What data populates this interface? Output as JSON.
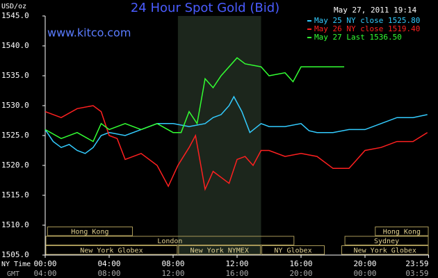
{
  "chart_data": {
    "type": "line",
    "title": "24 Hour Spot Gold (Bid)",
    "subtitle": "www.kitco.com",
    "timestamp": "May 27, 2011 19:14",
    "y_label": "USD/oz",
    "x_label": "NY Time",
    "x2_label": "GMT",
    "ylim": [
      1505,
      1545
    ],
    "yticks": [
      {
        "value": 1505,
        "label": "1505.0"
      },
      {
        "value": 1510,
        "label": "1510.0"
      },
      {
        "value": 1515,
        "label": "1515.0"
      },
      {
        "value": 1520,
        "label": "1520.0"
      },
      {
        "value": 1525,
        "label": "1525.0"
      },
      {
        "value": 1530,
        "label": "1530.0"
      },
      {
        "value": 1535,
        "label": "1535.0"
      },
      {
        "value": 1540,
        "label": "1540.0"
      },
      {
        "value": 1545,
        "label": "1545.0"
      }
    ],
    "xlim": [
      0,
      24
    ],
    "xticks": [
      {
        "value": 0,
        "label": "00:00"
      },
      {
        "value": 4,
        "label": "04:00"
      },
      {
        "value": 8,
        "label": "08:00"
      },
      {
        "value": 12,
        "label": "12:00"
      },
      {
        "value": 16,
        "label": "16:00"
      },
      {
        "value": 20,
        "label": "20:00"
      },
      {
        "value": 23.98,
        "label": "23:59"
      }
    ],
    "x2tick_labels": [
      "04:00",
      "08:00",
      "12:00",
      "16:00",
      "20:00",
      "00:00",
      "03:59"
    ],
    "series": [
      {
        "name": "May 25 NY close 1525.80",
        "color": "#33ccff",
        "x": [
          0,
          0.5,
          1,
          1.5,
          2,
          2.5,
          3,
          3.5,
          4,
          5,
          6,
          7,
          8,
          9,
          10,
          10.5,
          11,
          11.5,
          11.8,
          12.3,
          12.8,
          13.5,
          14,
          15,
          16,
          16.5,
          17,
          18,
          19,
          20,
          21,
          22,
          23,
          23.9
        ],
        "values": [
          1526,
          1524,
          1523,
          1523.5,
          1522.5,
          1522,
          1523,
          1525,
          1525.5,
          1525,
          1526,
          1527,
          1527,
          1526.5,
          1527,
          1528,
          1528.5,
          1530,
          1531.5,
          1529,
          1525.5,
          1527,
          1526.5,
          1526.5,
          1527,
          1525.8,
          1525.5,
          1525.5,
          1526,
          1526,
          1527,
          1528,
          1528,
          1528.5
        ]
      },
      {
        "name": "May 26 NY close 1519.40",
        "color": "#ff2020",
        "x": [
          0,
          1,
          2,
          3,
          3.5,
          4,
          4.5,
          5,
          6,
          7,
          7.7,
          8.3,
          9,
          9.4,
          10,
          10.5,
          11,
          11.5,
          12,
          12.5,
          13,
          13.5,
          14,
          15,
          16,
          17,
          18,
          19,
          20,
          21,
          22,
          23,
          23.9
        ],
        "values": [
          1529,
          1528,
          1529.5,
          1530,
          1529,
          1525,
          1524.5,
          1521,
          1522,
          1520,
          1516.5,
          1520,
          1523,
          1525,
          1516,
          1519,
          1518,
          1517,
          1521,
          1521.5,
          1520,
          1522.5,
          1522.5,
          1521.5,
          1522,
          1521.5,
          1519.5,
          1519.5,
          1522.5,
          1523,
          1524,
          1524,
          1525.5
        ]
      },
      {
        "name": "May 27 Last 1536.50",
        "color": "#33ff33",
        "x": [
          0,
          1,
          2,
          3,
          3.5,
          4,
          5,
          6,
          7,
          8,
          8.5,
          9,
          9.5,
          10,
          10.5,
          11,
          12,
          12.5,
          13.5,
          14,
          15,
          15.5,
          16,
          17,
          18,
          18.7
        ],
        "values": [
          1526,
          1524.5,
          1525.5,
          1524,
          1527,
          1526,
          1527,
          1526,
          1527,
          1525.5,
          1525.5,
          1529,
          1527,
          1534.5,
          1533,
          1535,
          1538,
          1537,
          1536.5,
          1535,
          1535.5,
          1534,
          1536.5,
          1536.5,
          1536.5,
          1536.5
        ]
      }
    ],
    "session_lanes": [
      [
        {
          "name": "Hong Kong",
          "start": 0.1,
          "end": 5.5
        },
        {
          "name": "Hong Kong",
          "start": 20.6,
          "end": 24
        }
      ],
      [
        {
          "name": "London",
          "start": 0,
          "end": 15.6
        },
        {
          "name": "Sydney",
          "start": 18.7,
          "end": 24
        }
      ],
      [
        {
          "name": "New York Globex",
          "start": 0,
          "end": 8.3
        },
        {
          "name": "New York NYMEX",
          "start": 8.3,
          "end": 13.5
        },
        {
          "name": "NY Globex",
          "start": 13.5,
          "end": 17.5
        },
        {
          "name": "New York Globex",
          "start": 18.5,
          "end": 24
        }
      ]
    ]
  }
}
